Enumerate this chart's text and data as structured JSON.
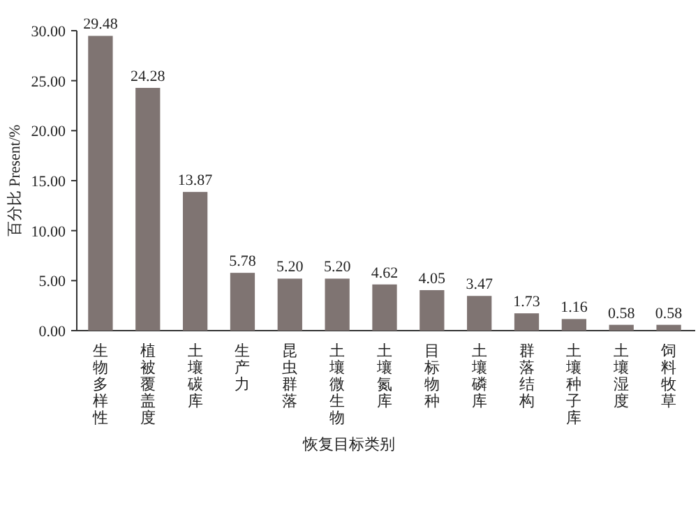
{
  "chart_data": {
    "type": "bar",
    "xlabel": "恢复目标类别",
    "ylabel": "百分比 Present/%",
    "categories": [
      "生物多样性",
      "植被覆盖度",
      "土壤碳库",
      "生产力",
      "昆虫群落",
      "土壤微生物",
      "土壤氮库",
      "目标物种",
      "土壤磷库",
      "群落结构",
      "土壤种子库",
      "土壤湿度",
      "饲料牧草"
    ],
    "values": [
      29.48,
      24.28,
      13.87,
      5.78,
      5.2,
      5.2,
      4.62,
      4.05,
      3.47,
      1.73,
      1.16,
      0.58,
      0.58
    ],
    "value_labels": [
      "29.48",
      "24.28",
      "13.87",
      "5.78",
      "5.20",
      "5.20",
      "4.62",
      "4.05",
      "3.47",
      "1.73",
      "1.16",
      "0.58",
      "0.58"
    ],
    "color": "#7f7472",
    "ylim": [
      0,
      30
    ],
    "yticks": [
      {
        "value": 0,
        "label": "0.00"
      },
      {
        "value": 5,
        "label": "5.00"
      },
      {
        "value": 10,
        "label": "10.00"
      },
      {
        "value": 15,
        "label": "15.00"
      },
      {
        "value": 20,
        "label": "20.00"
      },
      {
        "value": 25,
        "label": "25.00"
      },
      {
        "value": 30,
        "label": "30.00"
      }
    ],
    "grid": false
  }
}
